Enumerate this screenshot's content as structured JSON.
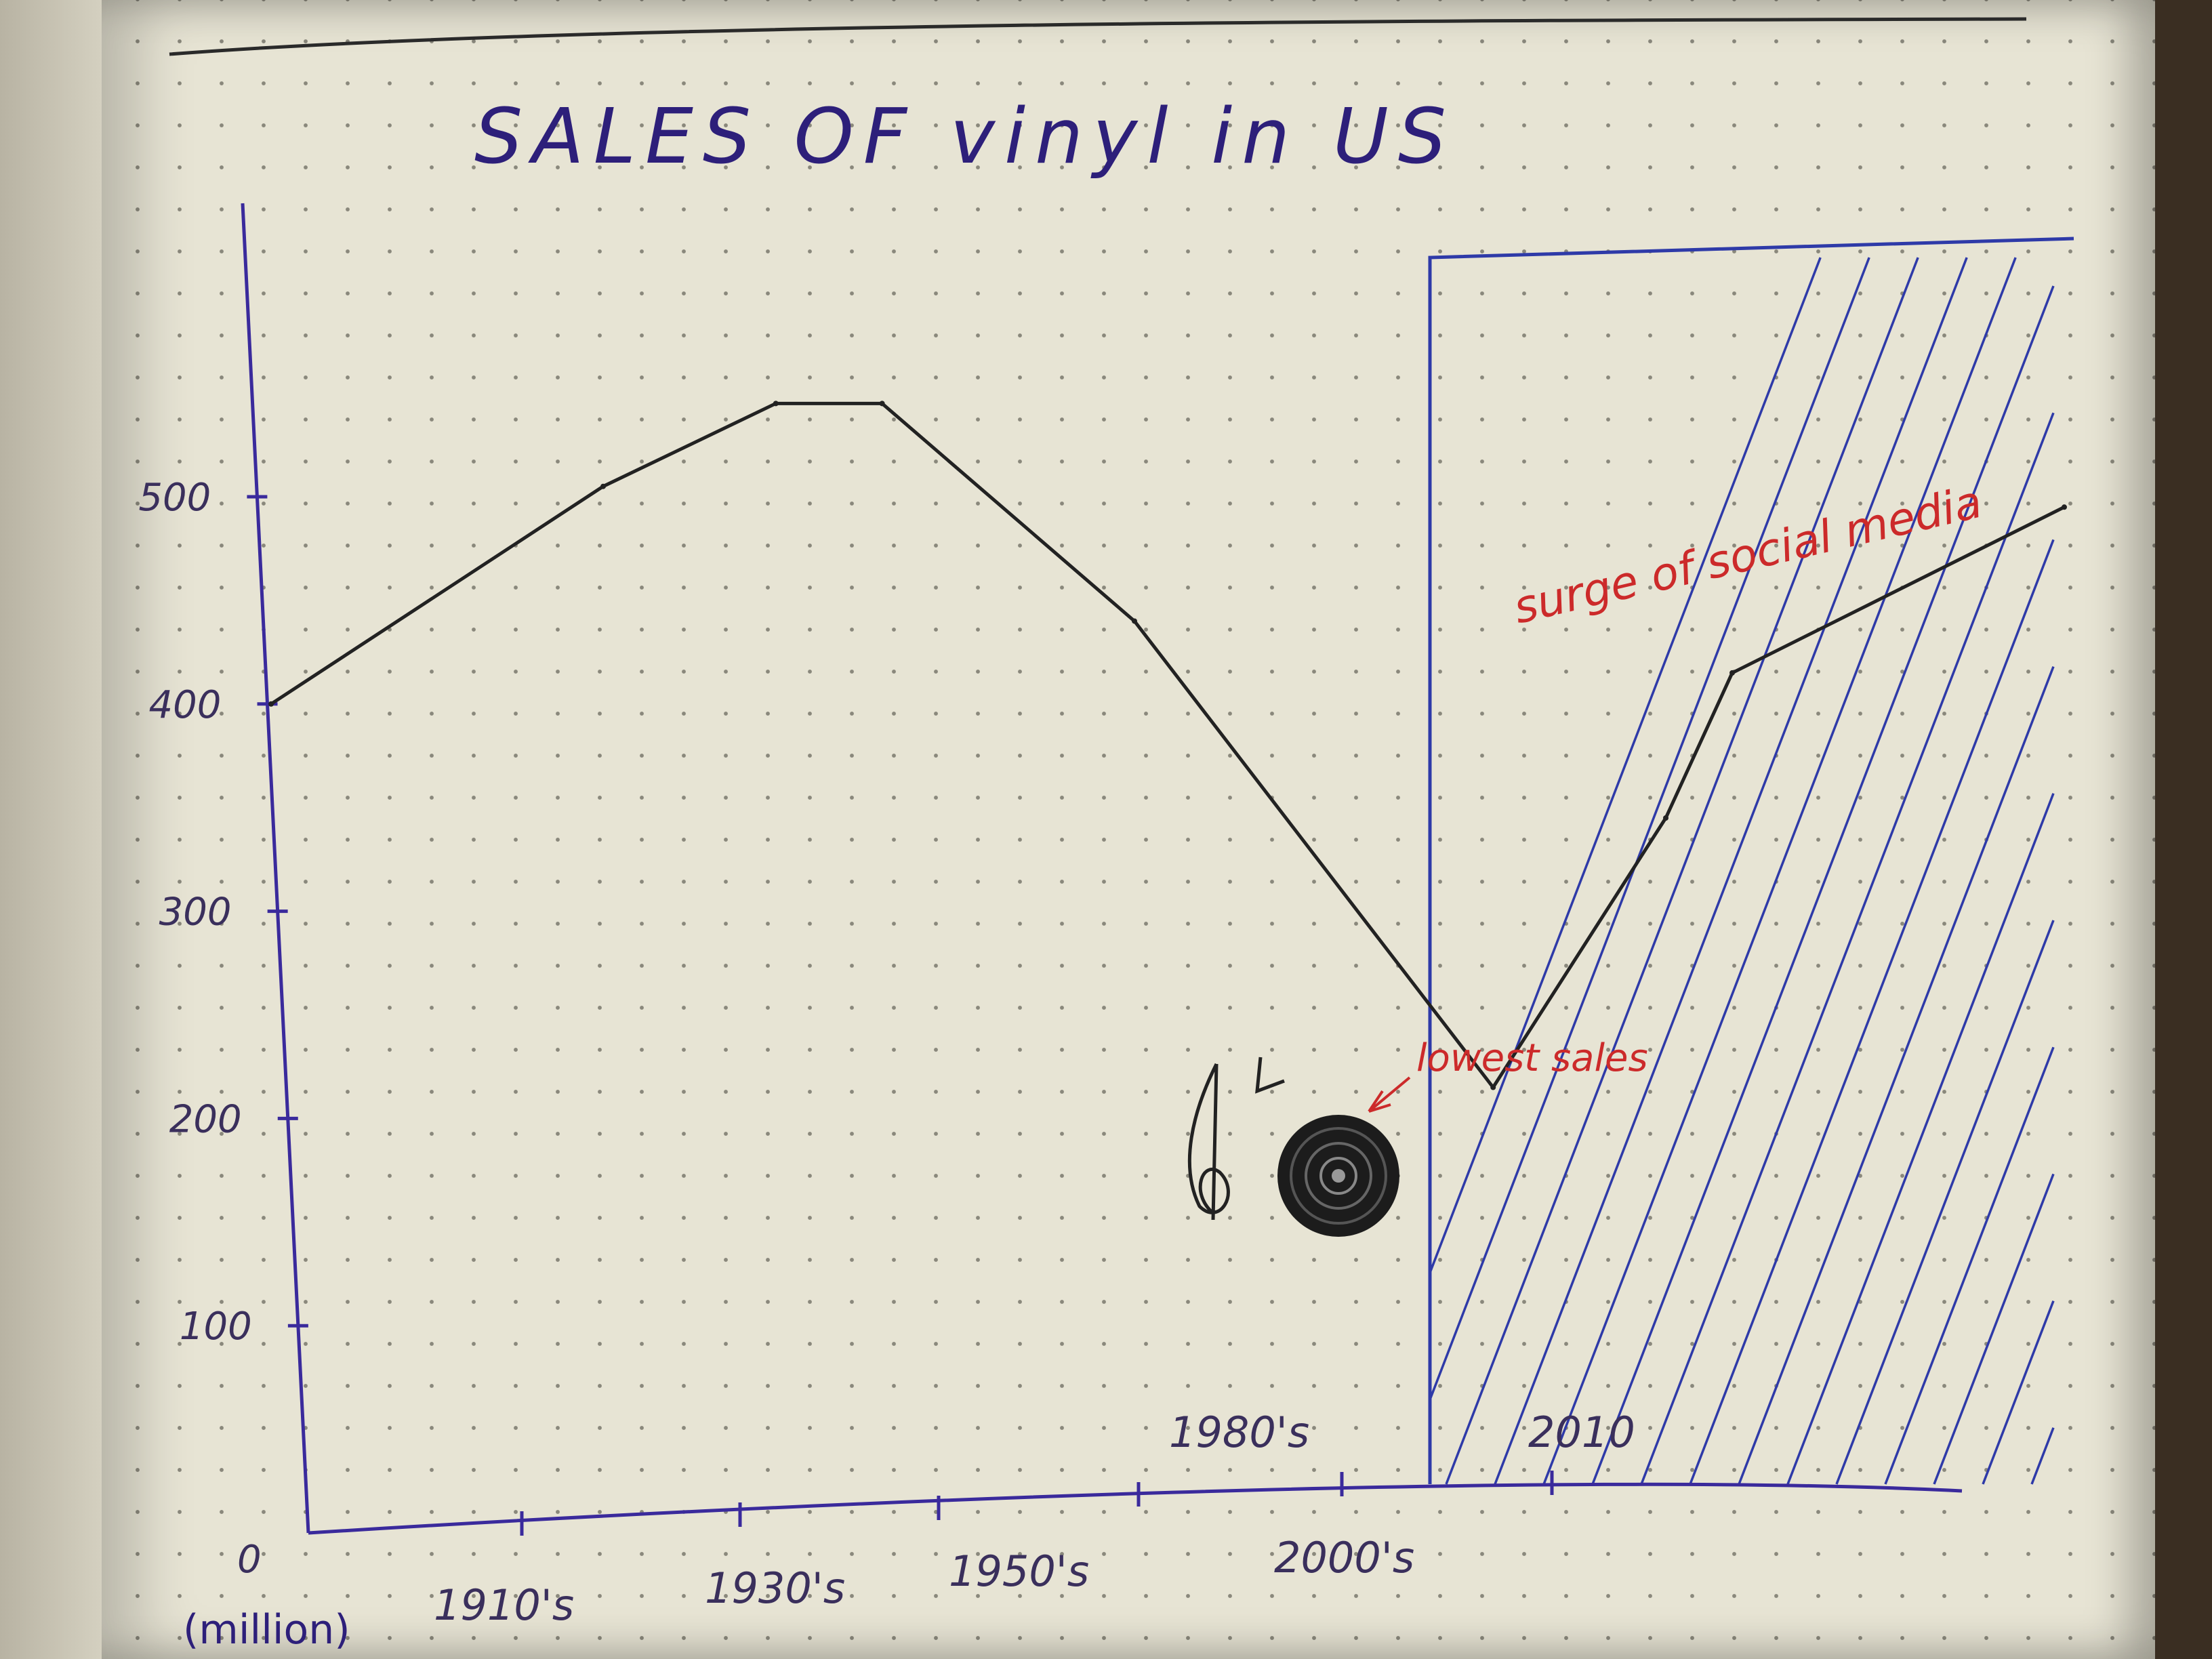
{
  "chart_data": {
    "type": "line",
    "title": "SALES  OF  vinyl in US",
    "ylabel": "(million)",
    "y_ticks": [
      "0",
      "100",
      "200",
      "300",
      "400",
      "500"
    ],
    "x_ticks": [
      "1910's",
      "1930's",
      "1950's",
      "1980's",
      "2000's",
      "2010"
    ],
    "ylim": [
      0,
      600
    ],
    "series": [
      {
        "values": [
          {
            "x": 1900,
            "y": 400
          },
          {
            "x": 1925,
            "y": 505
          },
          {
            "x": 1938,
            "y": 545
          },
          {
            "x": 1946,
            "y": 545
          },
          {
            "x": 1965,
            "y": 440
          },
          {
            "x": 1992,
            "y": 215
          },
          {
            "x": 2005,
            "y": 345
          },
          {
            "x": 2010,
            "y": 415
          },
          {
            "x": 2035,
            "y": 495
          }
        ]
      }
    ],
    "annotations": [
      {
        "text": "lowest sales",
        "color": "#cc2a2a"
      },
      {
        "text": "surge of social media",
        "color": "#cc2a2a"
      }
    ],
    "grid": false,
    "colors": {
      "line": "#222222",
      "axis": "#3a2a9c",
      "shade": "#2e3aa8",
      "annotation": "#cc2a2a"
    }
  }
}
